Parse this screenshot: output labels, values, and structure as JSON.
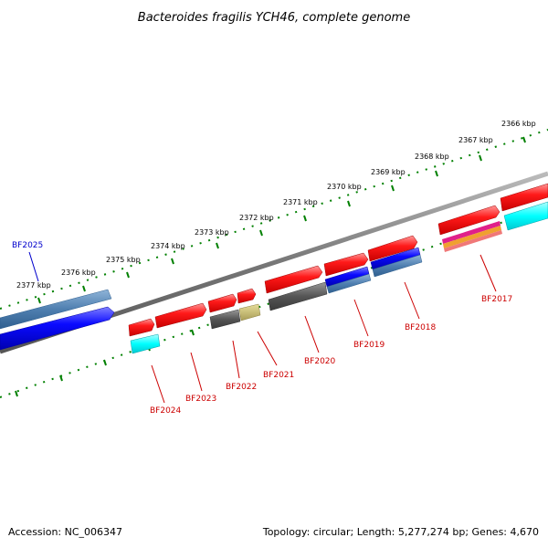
{
  "title": "Bacteroides fragilis YCH46, complete genome",
  "footer": {
    "accession": "Accession: NC_006347",
    "summary": "Topology: circular; Length: 5,277,274 bp; Genes: 4,670"
  },
  "ruler": {
    "ticks": [
      "2366 kbp",
      "2367 kbp",
      "2368 kbp",
      "2369 kbp",
      "2370 kbp",
      "2371 kbp",
      "2372 kbp",
      "2373 kbp",
      "2374 kbp",
      "2375 kbp",
      "2376 kbp",
      "2377 kbp"
    ]
  },
  "genes": [
    "BF2017",
    "BF2018",
    "BF2019",
    "BF2020",
    "BF2021",
    "BF2022",
    "BF2023",
    "BF2024",
    "BF2025"
  ],
  "colors": {
    "forward_gene": "#ff0000",
    "blue_gene": "#0000ff",
    "steel_gene": "#4f7fb0",
    "cyan_feature": "#00ffff",
    "gray_feature": "#555555",
    "khaki_feature": "#c8be78",
    "backbone": "#777777",
    "tick": "#008000",
    "label_red": "#cc0000",
    "label_blue": "#0000cc"
  }
}
